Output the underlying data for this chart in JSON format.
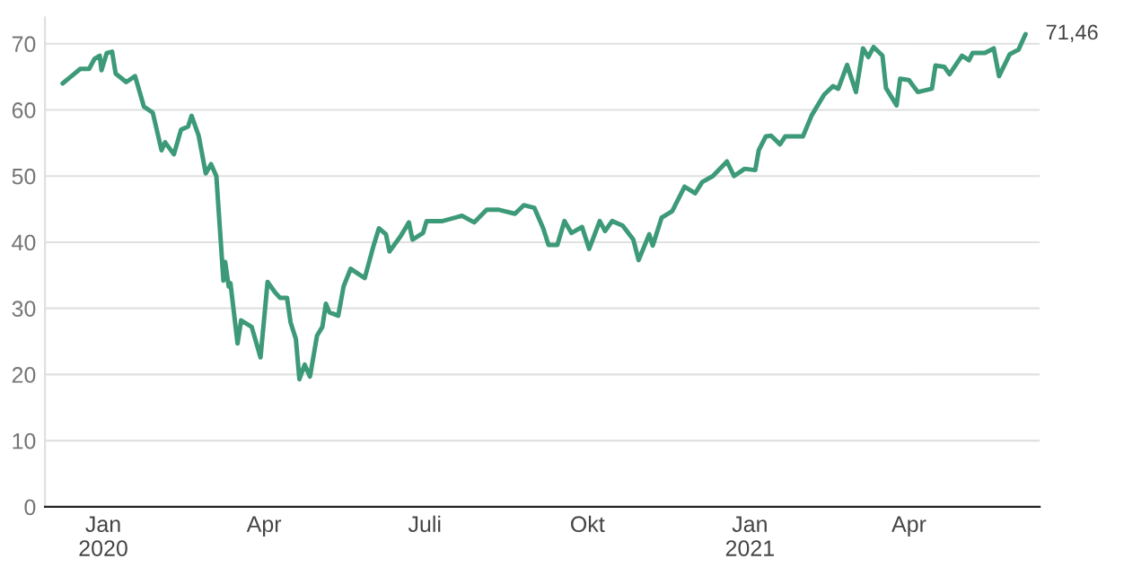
{
  "chart_data": {
    "type": "line",
    "x": [
      "2019-12-09",
      "2019-12-14",
      "2019-12-19",
      "2019-12-24",
      "2019-12-27",
      "2019-12-30",
      "2019-12-31",
      "2020-01-03",
      "2020-01-06",
      "2020-01-08",
      "2020-01-14",
      "2020-01-19",
      "2020-01-24",
      "2020-01-29",
      "2020-02-03",
      "2020-02-05",
      "2020-02-10",
      "2020-02-14",
      "2020-02-18",
      "2020-02-20",
      "2020-02-24",
      "2020-02-28",
      "2020-03-02",
      "2020-03-05",
      "2020-03-09",
      "2020-03-10",
      "2020-03-12",
      "2020-03-13",
      "2020-03-17",
      "2020-03-19",
      "2020-03-25",
      "2020-03-30",
      "2020-04-03",
      "2020-04-07",
      "2020-04-10",
      "2020-04-14",
      "2020-04-16",
      "2020-04-19",
      "2020-04-21",
      "2020-04-24",
      "2020-04-27",
      "2020-05-01",
      "2020-05-04",
      "2020-05-06",
      "2020-05-08",
      "2020-05-13",
      "2020-05-16",
      "2020-05-20",
      "2020-05-25",
      "2020-05-28",
      "2020-06-02",
      "2020-06-05",
      "2020-06-09",
      "2020-06-11",
      "2020-06-17",
      "2020-06-22",
      "2020-06-24",
      "2020-06-30",
      "2020-07-02",
      "2020-07-11",
      "2020-07-22",
      "2020-07-29",
      "2020-08-05",
      "2020-08-12",
      "2020-08-21",
      "2020-08-26",
      "2020-09-01",
      "2020-09-06",
      "2020-09-09",
      "2020-09-14",
      "2020-09-18",
      "2020-09-22",
      "2020-09-28",
      "2020-10-02",
      "2020-10-08",
      "2020-10-11",
      "2020-10-15",
      "2020-10-21",
      "2020-10-27",
      "2020-10-30",
      "2020-11-05",
      "2020-11-07",
      "2020-11-12",
      "2020-11-18",
      "2020-11-25",
      "2020-12-01",
      "2020-12-05",
      "2020-12-11",
      "2020-12-19",
      "2020-12-23",
      "2020-12-29",
      "2021-01-04",
      "2021-01-06",
      "2021-01-10",
      "2021-01-13",
      "2021-01-18",
      "2021-01-21",
      "2021-01-31",
      "2021-02-05",
      "2021-02-12",
      "2021-02-17",
      "2021-02-20",
      "2021-02-25",
      "2021-03-02",
      "2021-03-06",
      "2021-03-09",
      "2021-03-12",
      "2021-03-17",
      "2021-03-19",
      "2021-03-25",
      "2021-03-27",
      "2021-04-01",
      "2021-04-06",
      "2021-04-14",
      "2021-04-16",
      "2021-04-21",
      "2021-04-24",
      "2021-05-01",
      "2021-05-05",
      "2021-05-07",
      "2021-05-14",
      "2021-05-19",
      "2021-05-22",
      "2021-05-28",
      "2021-06-02",
      "2021-06-06"
    ],
    "series": [
      {
        "color": "#3d9a78",
        "values": [
          64.0,
          65.1,
          66.2,
          66.2,
          67.7,
          68.2,
          66.0,
          68.6,
          68.8,
          65.5,
          64.2,
          65.1,
          60.5,
          59.6,
          53.9,
          55.1,
          53.3,
          57.0,
          57.5,
          59.1,
          56.1,
          50.4,
          51.8,
          50.0,
          34.2,
          37.0,
          33.3,
          33.8,
          24.7,
          28.2,
          27.2,
          22.6,
          34.0,
          32.5,
          31.6,
          31.6,
          27.9,
          25.4,
          19.3,
          21.5,
          19.7,
          25.9,
          27.2,
          30.7,
          29.4,
          28.9,
          33.3,
          36.0,
          35.1,
          34.6,
          39.5,
          42.1,
          41.2,
          38.6,
          40.8,
          43.0,
          40.4,
          41.4,
          43.2,
          43.2,
          44.0,
          43.0,
          44.9,
          44.9,
          44.3,
          45.6,
          45.2,
          42.1,
          39.6,
          39.6,
          43.2,
          41.4,
          42.3,
          39.0,
          43.2,
          41.7,
          43.2,
          42.5,
          40.4,
          37.3,
          41.2,
          39.5,
          43.7,
          44.7,
          48.4,
          47.4,
          49.1,
          50.0,
          52.2,
          50.0,
          51.1,
          50.9,
          53.9,
          56.0,
          56.1,
          54.8,
          56.0,
          56.0,
          59.2,
          62.3,
          63.6,
          63.2,
          66.8,
          62.7,
          69.3,
          68.0,
          69.5,
          68.2,
          63.3,
          60.7,
          64.7,
          64.5,
          62.7,
          63.2,
          66.7,
          66.5,
          65.4,
          68.2,
          67.5,
          68.6,
          68.6,
          69.3,
          65.1,
          68.4,
          69.1,
          71.46
        ]
      }
    ],
    "annotations": [
      {
        "text": "71,46",
        "x": "2021-06-06",
        "y": 71.46
      }
    ],
    "xlim": [
      "2019-11-29",
      "2021-06-14"
    ],
    "xticks": [
      {
        "value": "2020-01-01",
        "label": "Jan\n2020"
      },
      {
        "value": "2020-04-01",
        "label": "Apr"
      },
      {
        "value": "2020-07-01",
        "label": "Juli"
      },
      {
        "value": "2020-10-01",
        "label": "Okt"
      },
      {
        "value": "2021-01-01",
        "label": "Jan\n2021"
      },
      {
        "value": "2021-04-01",
        "label": "Apr"
      }
    ],
    "ylim": [
      0,
      74
    ],
    "yticks": [
      0,
      10,
      20,
      30,
      40,
      50,
      60,
      70
    ],
    "grid": "y",
    "line_style": "solid",
    "marker": "none",
    "legend": false
  }
}
